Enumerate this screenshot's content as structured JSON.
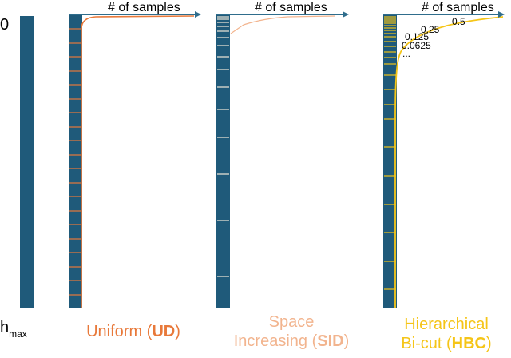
{
  "colors": {
    "column": "#1f5a7a",
    "axis": "#2f6d8c",
    "uniform": "#e8793a",
    "space": "#f2b48e",
    "hbc": "#f5c518",
    "text": "#000000"
  },
  "left_labels": {
    "zero": "0",
    "hmax_base": "h",
    "hmax_sub": "max"
  },
  "axis_label": "# of samples",
  "hbc_fractions": [
    "0.5",
    "0.25",
    "0.125",
    "0.0625",
    "..."
  ],
  "methods": {
    "uniform": {
      "line1": "Uniform (",
      "abbr": "UD",
      "close": ")"
    },
    "space": {
      "line1": "Space",
      "line2_prefix": "Increasing (",
      "abbr": "SID",
      "close": ")"
    },
    "hbc": {
      "line1": "Hierarchical",
      "line2_prefix": "Bi-cut (",
      "abbr": "HBC",
      "close": ")"
    }
  }
}
